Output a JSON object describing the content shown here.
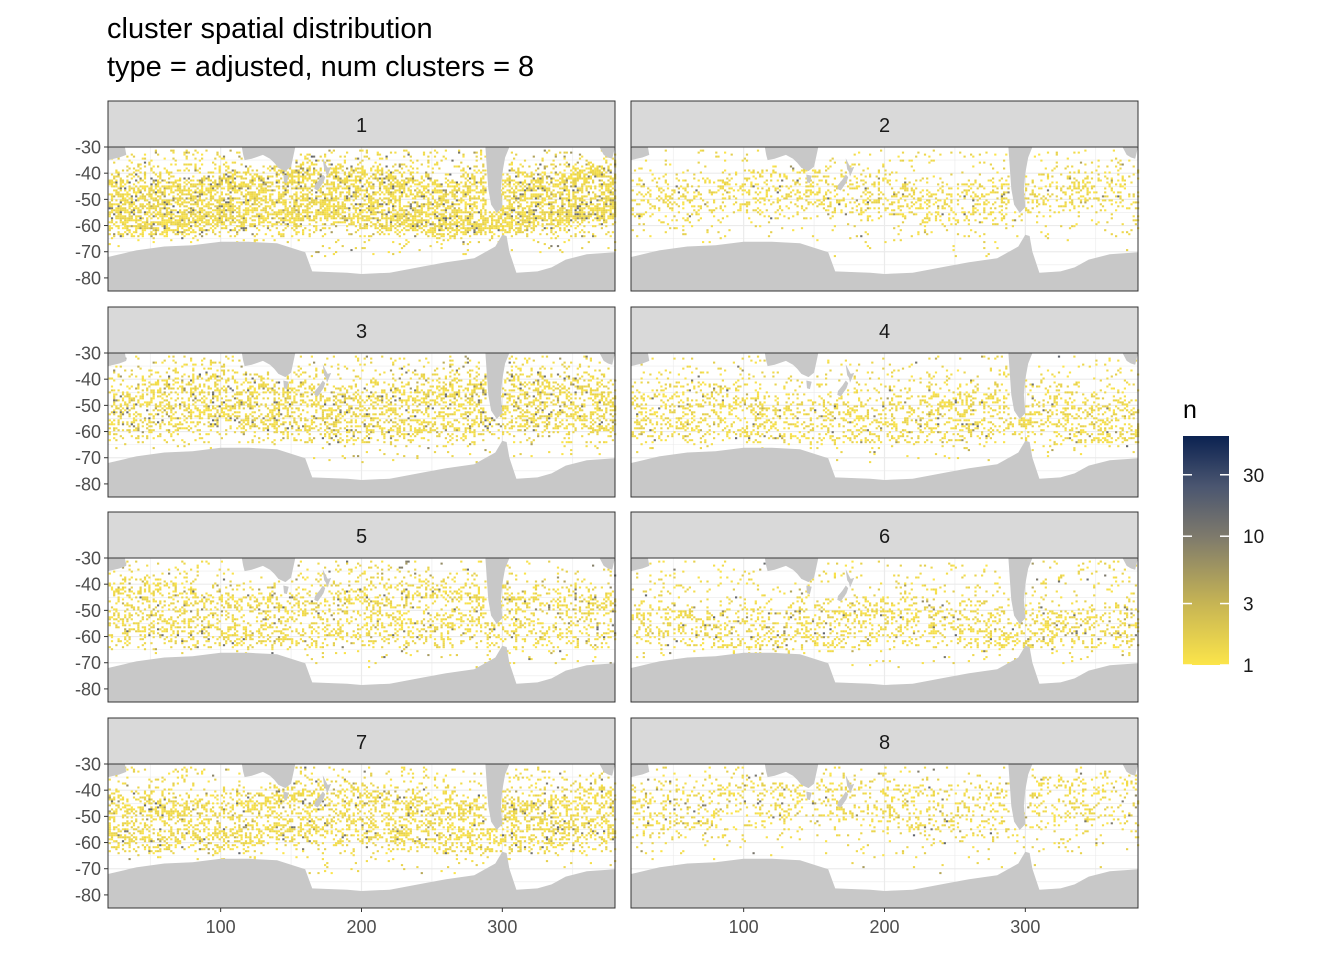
{
  "chart_data": {
    "type": "heatmap",
    "title": "cluster spatial distribution",
    "subtitle": "type = adjusted, num clusters = 8",
    "xlabel": "",
    "ylabel": "",
    "x_ticks": [
      100,
      200,
      300
    ],
    "y_ticks": [
      -30,
      -40,
      -50,
      -60,
      -70,
      -80
    ],
    "xlim": [
      20,
      380
    ],
    "ylim": [
      -85,
      -30
    ],
    "grid": true,
    "facet_layout": {
      "cols": 2,
      "rows": 4
    },
    "panels": [
      {
        "label": "1",
        "density": 0.46,
        "dark_share": 0.11,
        "bands": [
          {
            "lat": -43,
            "w": 5
          },
          {
            "lat": -52,
            "w": 5
          },
          {
            "lat": -58,
            "w": 4
          }
        ]
      },
      {
        "label": "2",
        "density": 0.2,
        "dark_share": 0.04,
        "bands": [
          {
            "lat": -45,
            "w": 5
          },
          {
            "lat": -52,
            "w": 5
          }
        ]
      },
      {
        "label": "3",
        "density": 0.34,
        "dark_share": 0.1,
        "bands": [
          {
            "lat": -45,
            "w": 6
          },
          {
            "lat": -56,
            "w": 6
          }
        ]
      },
      {
        "label": "4",
        "density": 0.24,
        "dark_share": 0.05,
        "bands": [
          {
            "lat": -50,
            "w": 6
          },
          {
            "lat": -60,
            "w": 5
          }
        ]
      },
      {
        "label": "5",
        "density": 0.28,
        "dark_share": 0.08,
        "bands": [
          {
            "lat": -45,
            "w": 6
          },
          {
            "lat": -58,
            "w": 6
          }
        ]
      },
      {
        "label": "6",
        "density": 0.22,
        "dark_share": 0.07,
        "bands": [
          {
            "lat": -52,
            "w": 6
          },
          {
            "lat": -60,
            "w": 5
          }
        ]
      },
      {
        "label": "7",
        "density": 0.38,
        "dark_share": 0.07,
        "bands": [
          {
            "lat": -45,
            "w": 5
          },
          {
            "lat": -56,
            "w": 5
          }
        ]
      },
      {
        "label": "8",
        "density": 0.18,
        "dark_share": 0.06,
        "bands": [
          {
            "lat": -40,
            "w": 5
          },
          {
            "lat": -50,
            "w": 5
          }
        ]
      }
    ],
    "legend": {
      "title": "n",
      "position": "right",
      "scale": "log10",
      "range": [
        1,
        60
      ],
      "breaks": [
        1,
        3,
        10,
        30
      ],
      "break_labels": [
        "1",
        "3",
        "10",
        "30"
      ],
      "colors": [
        "#FCE54A",
        "#C6B454",
        "#7E7A6C",
        "#4B5670",
        "#0B2251"
      ]
    },
    "colors": {
      "land": "#C8C8C8",
      "strip": "#D9D9D9",
      "grid": "#EBEBEB",
      "panel_border": "#333333"
    }
  }
}
